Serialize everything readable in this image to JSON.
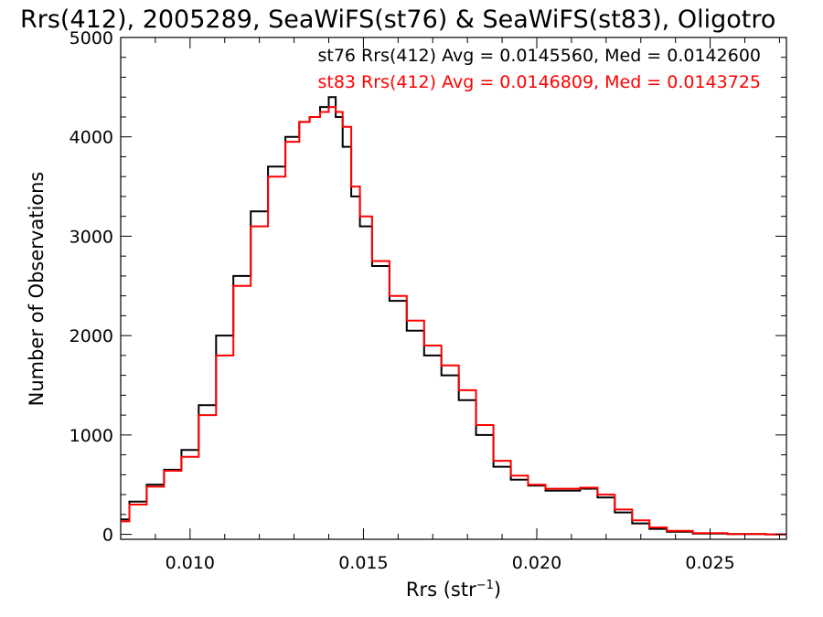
{
  "chart_data": {
    "type": "line",
    "title": "Rrs(412), 2005289, SeaWiFS(st76) & SeaWiFS(st83), Oligotro",
    "xlabel_main": "Rrs (str",
    "xlabel_sup": "−1",
    "xlabel_close": ")",
    "ylabel": "Number of Observations",
    "xlim": [
      0.008,
      0.0272
    ],
    "ylim": [
      -50,
      5000
    ],
    "x_ticks": [
      0.01,
      0.015,
      0.02,
      0.025
    ],
    "x_tick_labels": [
      "0.010",
      "0.015",
      "0.020",
      "0.025"
    ],
    "y_ticks": [
      0,
      1000,
      2000,
      3000,
      4000,
      5000
    ],
    "y_tick_labels": [
      "0",
      "1000",
      "2000",
      "3000",
      "4000",
      "5000"
    ],
    "grid": false,
    "legend_position": "top-right",
    "series": [
      {
        "name": "st76 Rrs(412) Avg = 0.0145560, Med = 0.0142600",
        "color": "#000000",
        "step": true,
        "x": [
          0.008,
          0.0085,
          0.009,
          0.0095,
          0.01,
          0.0105,
          0.011,
          0.0115,
          0.012,
          0.0125,
          0.013,
          0.0133,
          0.0136,
          0.0139,
          0.0141,
          0.0143,
          0.0145,
          0.0148,
          0.015,
          0.0155,
          0.016,
          0.0165,
          0.017,
          0.0175,
          0.018,
          0.0185,
          0.019,
          0.0195,
          0.02,
          0.0205,
          0.021,
          0.0215,
          0.022,
          0.0225,
          0.023,
          0.0235,
          0.024,
          0.025,
          0.026,
          0.0272
        ],
        "y": [
          150,
          330,
          500,
          650,
          850,
          1300,
          2000,
          2600,
          3250,
          3700,
          4000,
          4150,
          4200,
          4300,
          4400,
          4200,
          3900,
          3400,
          3100,
          2700,
          2350,
          2050,
          1800,
          1600,
          1350,
          1000,
          680,
          550,
          490,
          440,
          440,
          460,
          370,
          220,
          110,
          55,
          25,
          8,
          2,
          0
        ]
      },
      {
        "name": "st83 Rrs(412) Avg = 0.0146809, Med = 0.0143725",
        "color": "#ff0000",
        "step": true,
        "x": [
          0.008,
          0.0085,
          0.009,
          0.0095,
          0.01,
          0.0105,
          0.011,
          0.0115,
          0.012,
          0.0125,
          0.013,
          0.0133,
          0.0136,
          0.0139,
          0.0141,
          0.0143,
          0.0145,
          0.0148,
          0.015,
          0.0155,
          0.016,
          0.0165,
          0.017,
          0.0175,
          0.018,
          0.0185,
          0.019,
          0.0195,
          0.02,
          0.0205,
          0.021,
          0.0215,
          0.022,
          0.0225,
          0.023,
          0.0235,
          0.024,
          0.025,
          0.026,
          0.0272
        ],
        "y": [
          130,
          300,
          480,
          640,
          780,
          1200,
          1800,
          2500,
          3100,
          3600,
          3950,
          4150,
          4200,
          4250,
          4300,
          4250,
          4100,
          3500,
          3200,
          2750,
          2400,
          2150,
          1900,
          1700,
          1450,
          1100,
          740,
          590,
          500,
          460,
          460,
          470,
          400,
          250,
          140,
          70,
          35,
          12,
          3,
          0
        ]
      }
    ]
  }
}
